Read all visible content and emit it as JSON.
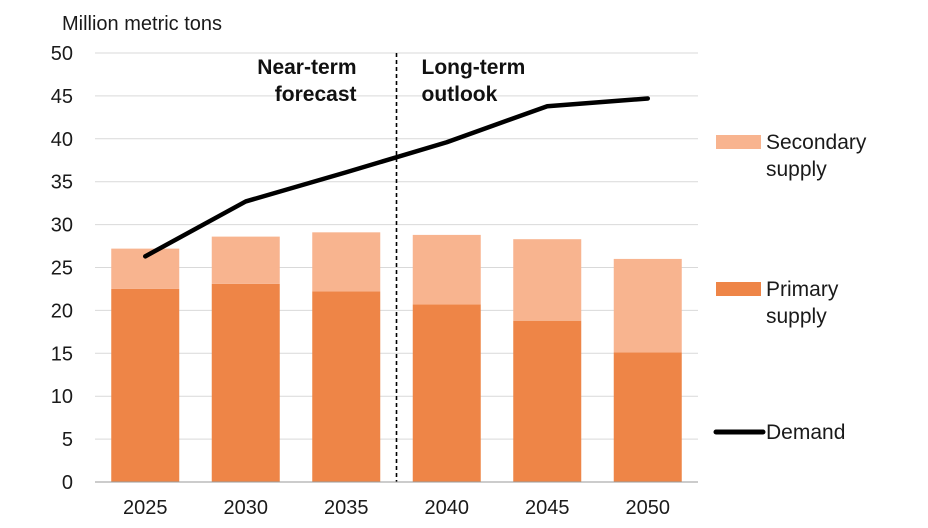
{
  "chart_data": {
    "type": "bar",
    "stacked": true,
    "ylabel": "Million metric tons",
    "ylim": [
      0,
      50
    ],
    "yticks": [
      "0",
      "5",
      "10",
      "15",
      "20",
      "25",
      "30",
      "35",
      "40",
      "45",
      "50"
    ],
    "categories": [
      "2025",
      "2030",
      "2035",
      "2040",
      "2045",
      "2050"
    ],
    "grid": true,
    "legend_position": "right",
    "series": [
      {
        "name": "Primary supply",
        "kind": "bar",
        "color": "#ee8547",
        "values": [
          22.5,
          23.1,
          22.2,
          20.7,
          18.8,
          15.1
        ]
      },
      {
        "name": "Secondary supply",
        "kind": "bar",
        "color": "#f8b48f",
        "values": [
          4.7,
          5.5,
          6.9,
          8.1,
          9.5,
          10.9
        ]
      },
      {
        "name": "Demand",
        "kind": "line",
        "color": "#000000",
        "values": [
          26.3,
          32.7,
          36.1,
          39.6,
          43.8,
          44.7
        ]
      }
    ],
    "legend": [
      {
        "lines": [
          "Secondary",
          "supply"
        ],
        "swatch": "patch",
        "color": "#f8b48f"
      },
      {
        "lines": [
          "Primary",
          "supply"
        ],
        "swatch": "patch",
        "color": "#ee8547"
      },
      {
        "lines": [
          "Demand"
        ],
        "swatch": "line",
        "color": "#000000"
      }
    ],
    "annotations": [
      {
        "lines": [
          "Near-term",
          "forecast"
        ]
      },
      {
        "lines": [
          "Long-term",
          "outlook"
        ]
      }
    ],
    "divider_between": [
      "2035",
      "2040"
    ]
  }
}
